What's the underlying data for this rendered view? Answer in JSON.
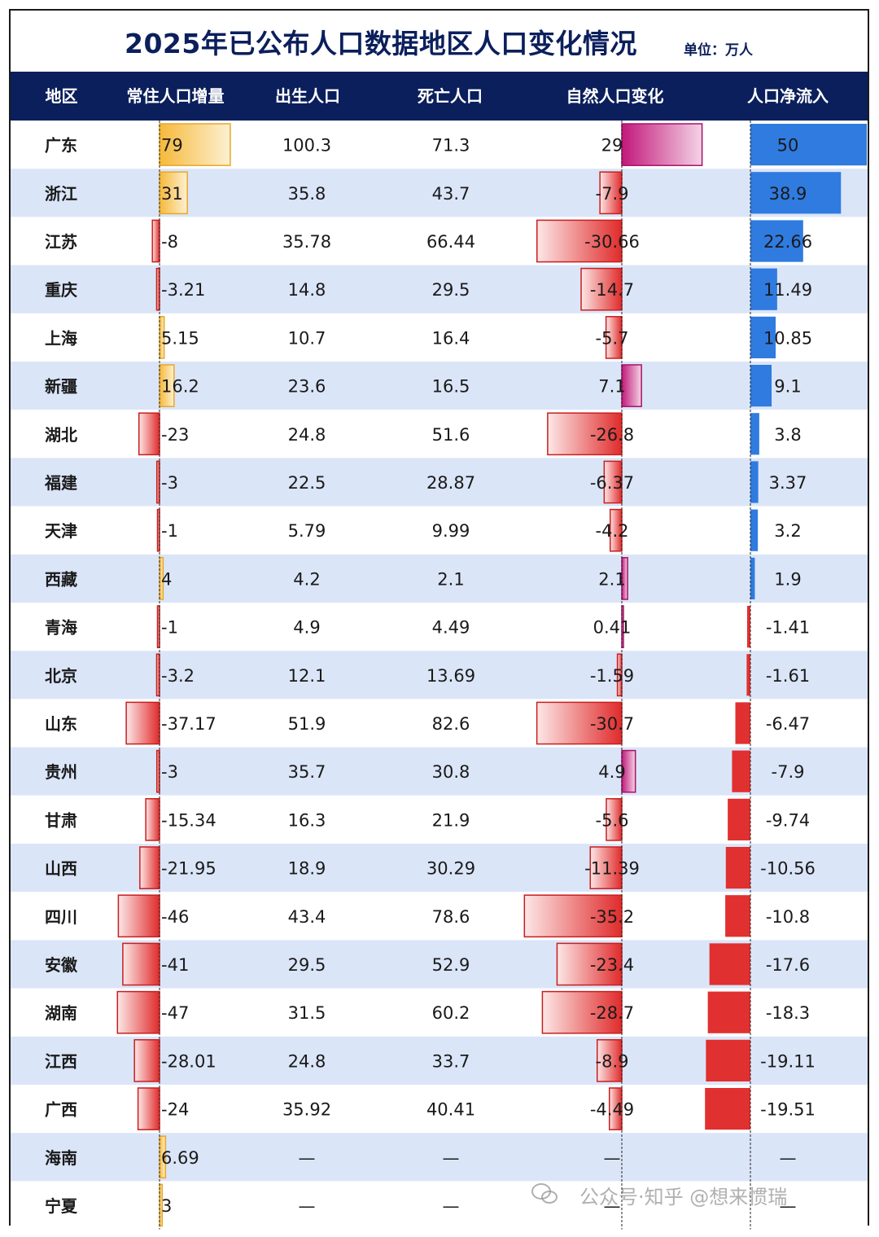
{
  "title": "2025年已公布人口数据地区人口变化情况",
  "unit": "单位：万人",
  "headers": [
    "地区",
    "常住人口增量",
    "出生人口",
    "死亡人口",
    "自然人口变化",
    "人口净流入"
  ],
  "dash": "—",
  "watermark": "公众号·知乎 @想来惯瑞",
  "colors": {
    "header_bg": "#0b1f5c",
    "row_alt": "#dbe5f8",
    "pos_growth": "#f7c463",
    "neg": "#e03030",
    "pos_natural": "#c2187a",
    "pos_inflow": "#2f7be0"
  },
  "chart_data": {
    "type": "table",
    "columns": [
      "地区",
      "常住人口增量",
      "出生人口",
      "死亡人口",
      "自然人口变化",
      "人口净流入"
    ],
    "rows": [
      {
        "region": "广东",
        "growth": "79",
        "births": "100.3",
        "deaths": "71.3",
        "natural": "29",
        "inflow": "50"
      },
      {
        "region": "浙江",
        "growth": "31",
        "births": "35.8",
        "deaths": "43.7",
        "natural": "-7.9",
        "inflow": "38.9"
      },
      {
        "region": "江苏",
        "growth": "-8",
        "births": "35.78",
        "deaths": "66.44",
        "natural": "-30.66",
        "inflow": "22.66"
      },
      {
        "region": "重庆",
        "growth": "-3.21",
        "births": "14.8",
        "deaths": "29.5",
        "natural": "-14.7",
        "inflow": "11.49"
      },
      {
        "region": "上海",
        "growth": "5.15",
        "births": "10.7",
        "deaths": "16.4",
        "natural": "-5.7",
        "inflow": "10.85"
      },
      {
        "region": "新疆",
        "growth": "16.2",
        "births": "23.6",
        "deaths": "16.5",
        "natural": "7.1",
        "inflow": "9.1"
      },
      {
        "region": "湖北",
        "growth": "-23",
        "births": "24.8",
        "deaths": "51.6",
        "natural": "-26.8",
        "inflow": "3.8"
      },
      {
        "region": "福建",
        "growth": "-3",
        "births": "22.5",
        "deaths": "28.87",
        "natural": "-6.37",
        "inflow": "3.37"
      },
      {
        "region": "天津",
        "growth": "-1",
        "births": "5.79",
        "deaths": "9.99",
        "natural": "-4.2",
        "inflow": "3.2"
      },
      {
        "region": "西藏",
        "growth": "4",
        "births": "4.2",
        "deaths": "2.1",
        "natural": "2.1",
        "inflow": "1.9"
      },
      {
        "region": "青海",
        "growth": "-1",
        "births": "4.9",
        "deaths": "4.49",
        "natural": "0.41",
        "inflow": "-1.41"
      },
      {
        "region": "北京",
        "growth": "-3.2",
        "births": "12.1",
        "deaths": "13.69",
        "natural": "-1.59",
        "inflow": "-1.61"
      },
      {
        "region": "山东",
        "growth": "-37.17",
        "births": "51.9",
        "deaths": "82.6",
        "natural": "-30.7",
        "inflow": "-6.47"
      },
      {
        "region": "贵州",
        "growth": "-3",
        "births": "35.7",
        "deaths": "30.8",
        "natural": "4.9",
        "inflow": "-7.9"
      },
      {
        "region": "甘肃",
        "growth": "-15.34",
        "births": "16.3",
        "deaths": "21.9",
        "natural": "-5.6",
        "inflow": "-9.74"
      },
      {
        "region": "山西",
        "growth": "-21.95",
        "births": "18.9",
        "deaths": "30.29",
        "natural": "-11.39",
        "inflow": "-10.56"
      },
      {
        "region": "四川",
        "growth": "-46",
        "births": "43.4",
        "deaths": "78.6",
        "natural": "-35.2",
        "inflow": "-10.8"
      },
      {
        "region": "安徽",
        "growth": "-41",
        "births": "29.5",
        "deaths": "52.9",
        "natural": "-23.4",
        "inflow": "-17.6"
      },
      {
        "region": "湖南",
        "growth": "-47",
        "births": "31.5",
        "deaths": "60.2",
        "natural": "-28.7",
        "inflow": "-18.3"
      },
      {
        "region": "江西",
        "growth": "-28.01",
        "births": "24.8",
        "deaths": "33.7",
        "natural": "-8.9",
        "inflow": "-19.11"
      },
      {
        "region": "广西",
        "growth": "-24",
        "births": "35.92",
        "deaths": "40.41",
        "natural": "-4.49",
        "inflow": "-19.51"
      },
      {
        "region": "海南",
        "growth": "6.69",
        "births": null,
        "deaths": null,
        "natural": null,
        "inflow": null
      },
      {
        "region": "宁夏",
        "growth": "3",
        "births": null,
        "deaths": null,
        "natural": null,
        "inflow": null
      }
    ]
  }
}
